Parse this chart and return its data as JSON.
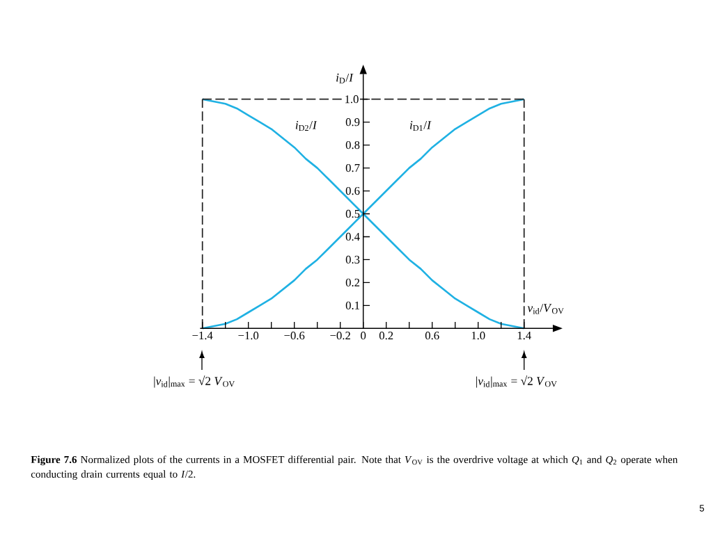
{
  "chart_data": {
    "type": "line",
    "xlabel": "*v*$_{id}$/*V*$_{OV}$",
    "ylabel": "*i*$_{D}$/*I*",
    "annotations": [
      "|*v*$_{id}$|$_{max}$ = √2 *V*$_{OV}$",
      "|*v*$_{id}$|$_{max}$ = √2 *V*$_{OV}$",
      "**Figure 7.6** Normalized plots of the currents in a MOSFET differential pair. Note that *V*$_{OV}$ is the overdrive voltage at which *Q*$_{1}$ and *Q*$_{2}$ operate when conducting drain currents equal to *I*/2.",
      "5"
    ],
    "x": [
      -1.4,
      -1.3,
      -1.2,
      -1.1,
      -1.0,
      -0.9,
      -0.8,
      -0.7,
      -0.6,
      -0.5,
      -0.4,
      -0.3,
      -0.2,
      -0.1,
      0,
      0.1,
      0.2,
      0.3,
      0.4,
      0.5,
      0.6,
      0.7,
      0.8,
      0.9,
      1.0,
      1.1,
      1.2,
      1.3,
      1.4
    ],
    "series": [
      {
        "name": "*i*$_{D2}$/*I*",
        "color": "#1fb1e3",
        "values": [
          1.0,
          0.99,
          0.98,
          0.96,
          0.93,
          0.9,
          0.87,
          0.83,
          0.79,
          0.74,
          0.7,
          0.65,
          0.6,
          0.55,
          0.5,
          0.45,
          0.4,
          0.35,
          0.3,
          0.26,
          0.21,
          0.17,
          0.13,
          0.1,
          0.07,
          0.04,
          0.02,
          0.01,
          0
        ]
      },
      {
        "name": "*i*$_{D1}$/*I*",
        "color": "#1fb1e3",
        "values": [
          0,
          0.01,
          0.02,
          0.04,
          0.07,
          0.1,
          0.13,
          0.17,
          0.21,
          0.26,
          0.3,
          0.35,
          0.4,
          0.45,
          0.5,
          0.55,
          0.6,
          0.65,
          0.7,
          0.74,
          0.79,
          0.83,
          0.87,
          0.9,
          0.93,
          0.96,
          0.98,
          0.99,
          1.0
        ]
      }
    ],
    "ref_lines": [
      {
        "axis": "x",
        "value": -1.4,
        "color": "#222222",
        "line_style": "dashed"
      },
      {
        "axis": "x",
        "value": 1.4,
        "color": "#222222",
        "line_style": "dashed"
      },
      {
        "axis": "y",
        "value": 1.0,
        "color": "#222222",
        "line_style": "dashed"
      }
    ],
    "xlim": [
      -1.42,
      1.65
    ],
    "ylim": [
      0,
      1.11
    ],
    "xticks": [
      {
        "value": -1.4,
        "label": "−1.4"
      },
      {
        "value": -1.2,
        "label": null
      },
      {
        "value": -1.0,
        "label": "−1.0"
      },
      {
        "value": -0.8,
        "label": null
      },
      {
        "value": -0.6,
        "label": "−0.6"
      },
      {
        "value": -0.4,
        "label": null
      },
      {
        "value": -0.2,
        "label": "−0.2"
      },
      0,
      0.2,
      {
        "value": 0.4,
        "label": null
      },
      0.6,
      {
        "value": 0.8,
        "label": null
      },
      {
        "value": 1.0,
        "label": "1.0"
      },
      {
        "value": 1.2,
        "label": null
      },
      1.4
    ],
    "yticks": [
      0.1,
      0.2,
      0.3,
      0.4,
      0.5,
      0.6,
      0.7,
      0.8,
      0.9,
      {
        "value": 1.0,
        "label": "1.0"
      }
    ],
    "marker": "none",
    "line_style": "solid"
  }
}
